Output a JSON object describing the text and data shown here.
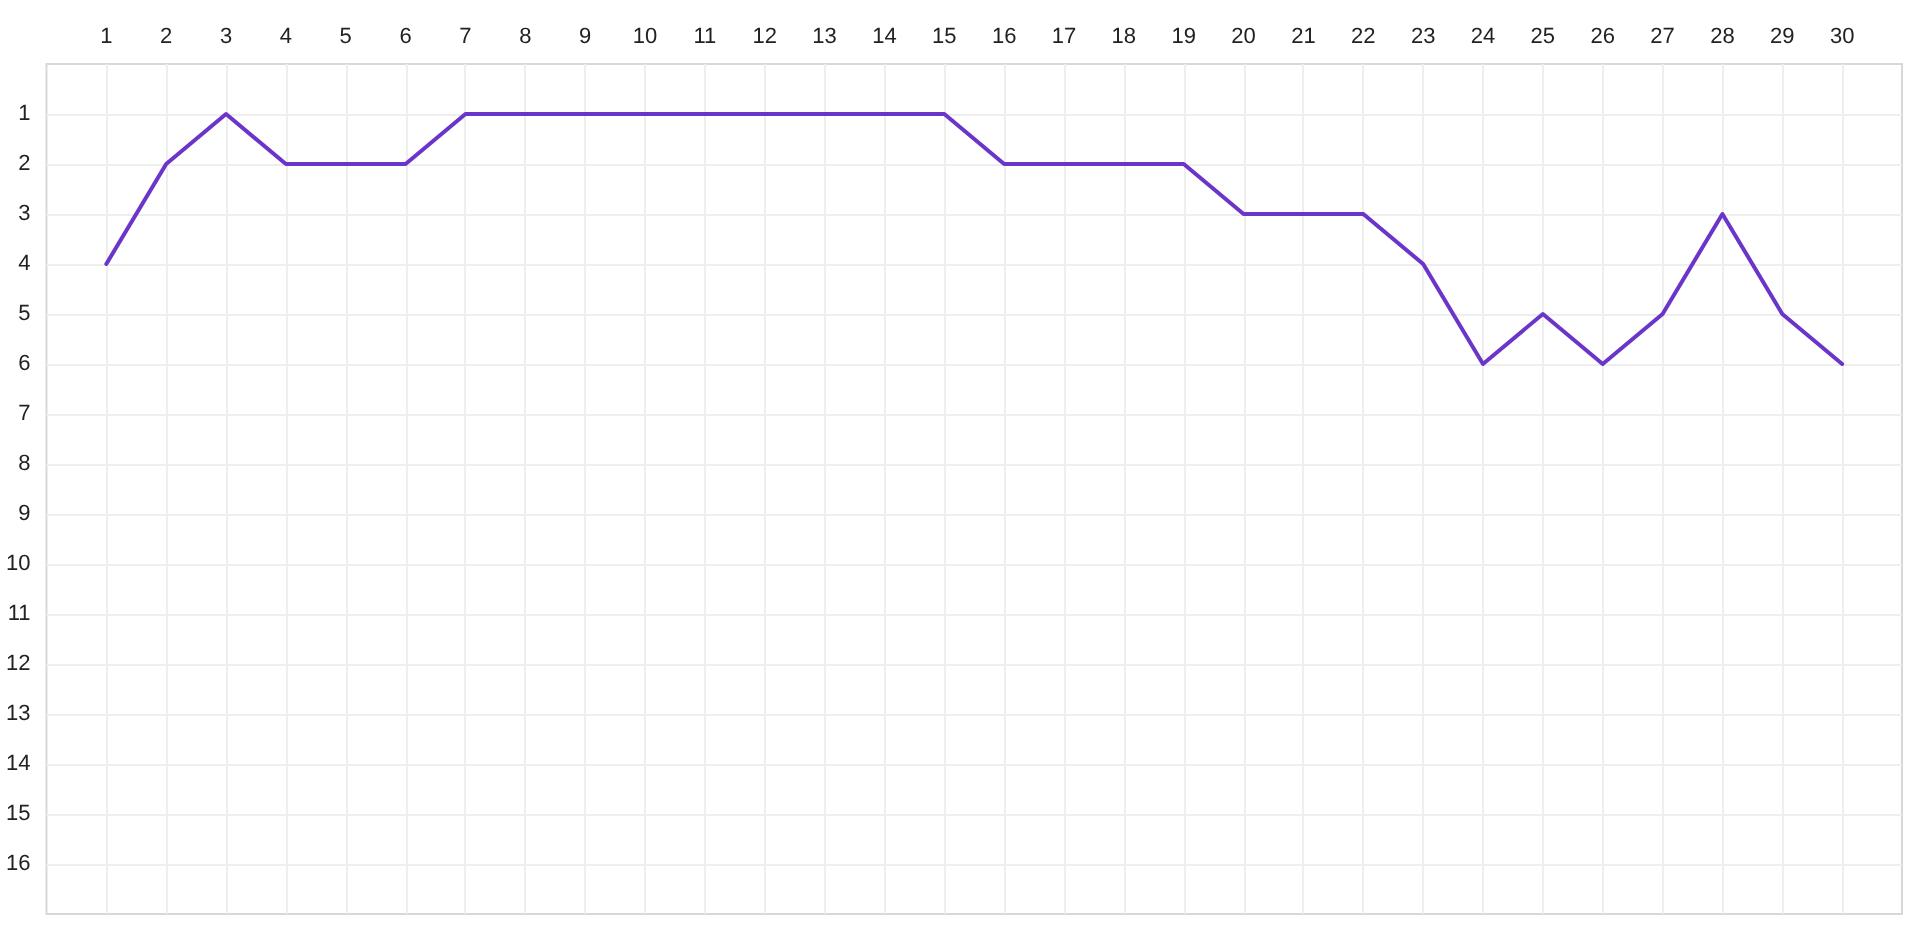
{
  "chart_data": {
    "type": "line",
    "x": [
      1,
      2,
      3,
      4,
      5,
      6,
      7,
      8,
      9,
      10,
      11,
      12,
      13,
      14,
      15,
      16,
      17,
      18,
      19,
      20,
      21,
      22,
      23,
      24,
      25,
      26,
      27,
      28,
      29,
      30
    ],
    "series": [
      {
        "color": "#6a35c8",
        "values": [
          4,
          2,
          1,
          2,
          2,
          2,
          1,
          1,
          1,
          1,
          1,
          1,
          1,
          1,
          1,
          2,
          2,
          2,
          2,
          3,
          3,
          3,
          4,
          6,
          5,
          6,
          5,
          3,
          5,
          6
        ]
      }
    ],
    "xlim": [
      0,
      31
    ],
    "xticks": [
      1,
      2,
      3,
      4,
      5,
      6,
      7,
      8,
      9,
      10,
      11,
      12,
      13,
      14,
      15,
      16,
      17,
      18,
      19,
      20,
      21,
      22,
      23,
      24,
      25,
      26,
      27,
      28,
      29,
      30
    ],
    "ylim": [
      17,
      0
    ],
    "yticks": [
      1,
      2,
      3,
      4,
      5,
      6,
      7,
      8,
      9,
      10,
      11,
      12,
      13,
      14,
      15,
      16
    ],
    "grid": true,
    "marker": "none",
    "line_style": "solid"
  }
}
